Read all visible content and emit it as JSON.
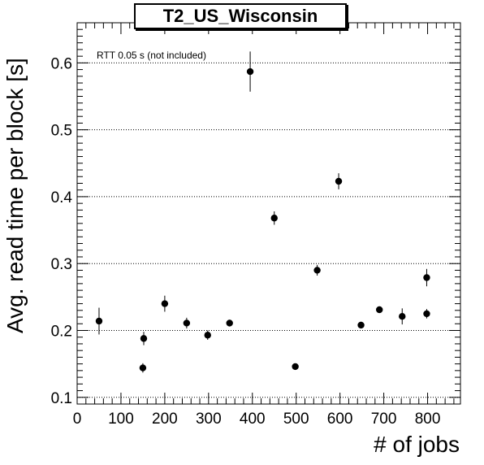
{
  "chart_data": {
    "type": "scatter",
    "title": "T2_US_Wisconsin",
    "annotation": "RTT 0.05 s (not included)",
    "xlabel": "# of jobs",
    "ylabel": "Avg. read time per block [s]",
    "xlim": [
      0,
      875
    ],
    "ylim": [
      0.09,
      0.66
    ],
    "xticks": [
      0,
      100,
      200,
      300,
      400,
      500,
      600,
      700,
      800
    ],
    "yticks": [
      0.1,
      0.2,
      0.3,
      0.4,
      0.5,
      0.6
    ],
    "yticklabels": [
      "0.1",
      "0.2",
      "0.3",
      "0.4",
      "0.5",
      "0.6"
    ],
    "grid": "horizontal dotted",
    "points": [
      {
        "x": 50,
        "y": 0.214,
        "err": 0.02
      },
      {
        "x": 150,
        "y": 0.144,
        "err": 0.007
      },
      {
        "x": 152,
        "y": 0.188,
        "err": 0.01
      },
      {
        "x": 200,
        "y": 0.24,
        "err": 0.012
      },
      {
        "x": 250,
        "y": 0.211,
        "err": 0.008
      },
      {
        "x": 298,
        "y": 0.193,
        "err": 0.007
      },
      {
        "x": 348,
        "y": 0.211,
        "err": 0.005
      },
      {
        "x": 395,
        "y": 0.587,
        "err": 0.03
      },
      {
        "x": 450,
        "y": 0.368,
        "err": 0.01
      },
      {
        "x": 498,
        "y": 0.146,
        "err": 0.004
      },
      {
        "x": 548,
        "y": 0.29,
        "err": 0.008
      },
      {
        "x": 597,
        "y": 0.423,
        "err": 0.012
      },
      {
        "x": 648,
        "y": 0.208,
        "err": 0.005
      },
      {
        "x": 690,
        "y": 0.231,
        "err": 0.005
      },
      {
        "x": 742,
        "y": 0.221,
        "err": 0.012
      },
      {
        "x": 798,
        "y": 0.279,
        "err": 0.013
      },
      {
        "x": 798,
        "y": 0.225,
        "err": 0.007
      }
    ]
  }
}
